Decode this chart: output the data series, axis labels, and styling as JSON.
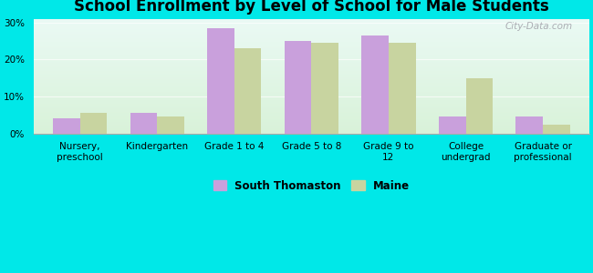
{
  "title": "School Enrollment by Level of School for Male Students",
  "categories": [
    "Nursery,\npreschool",
    "Kindergarten",
    "Grade 1 to 4",
    "Grade 5 to 8",
    "Grade 9 to\n12",
    "College\nundergrad",
    "Graduate or\nprofessional"
  ],
  "south_thomaston": [
    4.0,
    5.5,
    28.5,
    25.0,
    26.5,
    4.5,
    4.7
  ],
  "maine": [
    5.5,
    4.7,
    23.0,
    24.5,
    24.5,
    15.0,
    2.5
  ],
  "south_thomaston_color": "#c9a0dc",
  "maine_color": "#c8d4a0",
  "background_color": "#00e8e8",
  "ylim": [
    0,
    31
  ],
  "yticks": [
    0,
    10,
    20,
    30
  ],
  "ytick_labels": [
    "0%",
    "10%",
    "20%",
    "30%"
  ],
  "legend_label_1": "South Thomaston",
  "legend_label_2": "Maine",
  "bar_width": 0.35,
  "title_fontsize": 12,
  "tick_fontsize": 7.5,
  "legend_fontsize": 8.5,
  "watermark": "City-Data.com"
}
